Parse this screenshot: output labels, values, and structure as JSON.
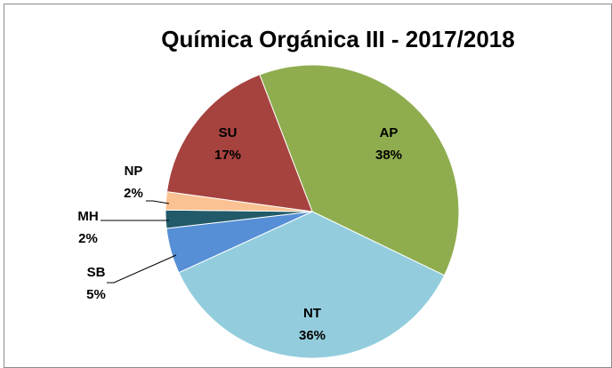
{
  "chart_data": {
    "type": "pie",
    "title": "Química Orgánica III - 2017/2018",
    "categories": [
      "AP",
      "NT",
      "SB",
      "MH",
      "NP",
      "SU"
    ],
    "values": [
      38,
      36,
      5,
      2,
      2,
      17
    ],
    "value_labels": [
      "38%",
      "36%",
      "5%",
      "2%",
      "2%",
      "17%"
    ],
    "colors": [
      "#8fad4f",
      "#93cddd",
      "#568fd6",
      "#225a69",
      "#fac192",
      "#a6433f"
    ]
  }
}
